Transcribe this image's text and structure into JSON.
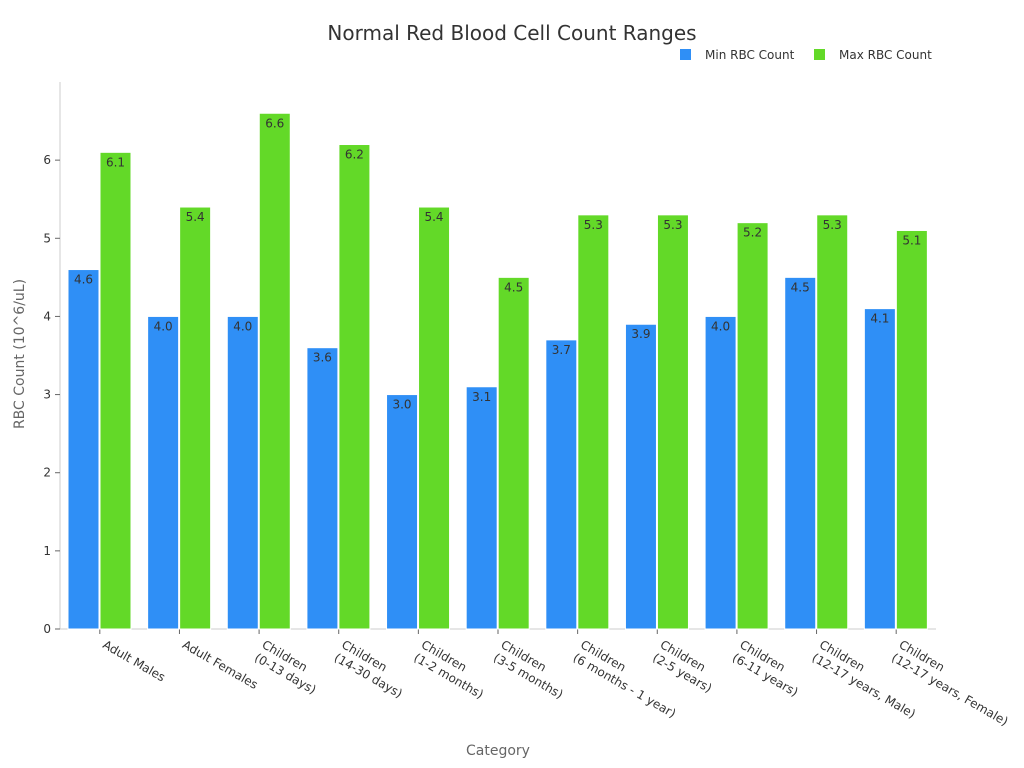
{
  "chart_data": {
    "type": "bar",
    "title": "Normal Red Blood Cell Count Ranges",
    "xlabel": "Category",
    "ylabel": "RBC Count (10^6/uL)",
    "ylim": [
      0,
      7
    ],
    "yticks": [
      0,
      1,
      2,
      3,
      4,
      5,
      6
    ],
    "grid": false,
    "legend_position": "top-right",
    "categories": [
      [
        "Adult Males"
      ],
      [
        "Adult Females"
      ],
      [
        "Children",
        "(0-13 days)"
      ],
      [
        "Children",
        "(14-30 days)"
      ],
      [
        "Children",
        "(1-2 months)"
      ],
      [
        "Children",
        "(3-5 months)"
      ],
      [
        "Children",
        "(6 months - 1 year)"
      ],
      [
        "Children",
        "(2-5 years)"
      ],
      [
        "Children",
        "(6-11 years)"
      ],
      [
        "Children",
        "(12-17 years, Male)"
      ],
      [
        "Children",
        "(12-17 years, Female)"
      ]
    ],
    "series": [
      {
        "name": "Min RBC Count",
        "color": "#2f8ff6",
        "values": [
          4.6,
          4.0,
          4.0,
          3.6,
          3.0,
          3.1,
          3.7,
          3.9,
          4.0,
          4.5,
          4.1
        ],
        "labels": [
          "4.6",
          "4.0",
          "4.0",
          "3.6",
          "3.0",
          "3.1",
          "3.7",
          "3.9",
          "4.0",
          "4.5",
          "4.1"
        ]
      },
      {
        "name": "Max RBC Count",
        "color": "#63d928",
        "values": [
          6.1,
          5.4,
          6.6,
          6.2,
          5.4,
          4.5,
          5.3,
          5.3,
          5.2,
          5.3,
          5.1
        ],
        "labels": [
          "6.1",
          "5.4",
          "6.6",
          "6.2",
          "5.4",
          "4.5",
          "5.3",
          "5.3",
          "5.2",
          "5.3",
          "5.1"
        ]
      }
    ]
  }
}
